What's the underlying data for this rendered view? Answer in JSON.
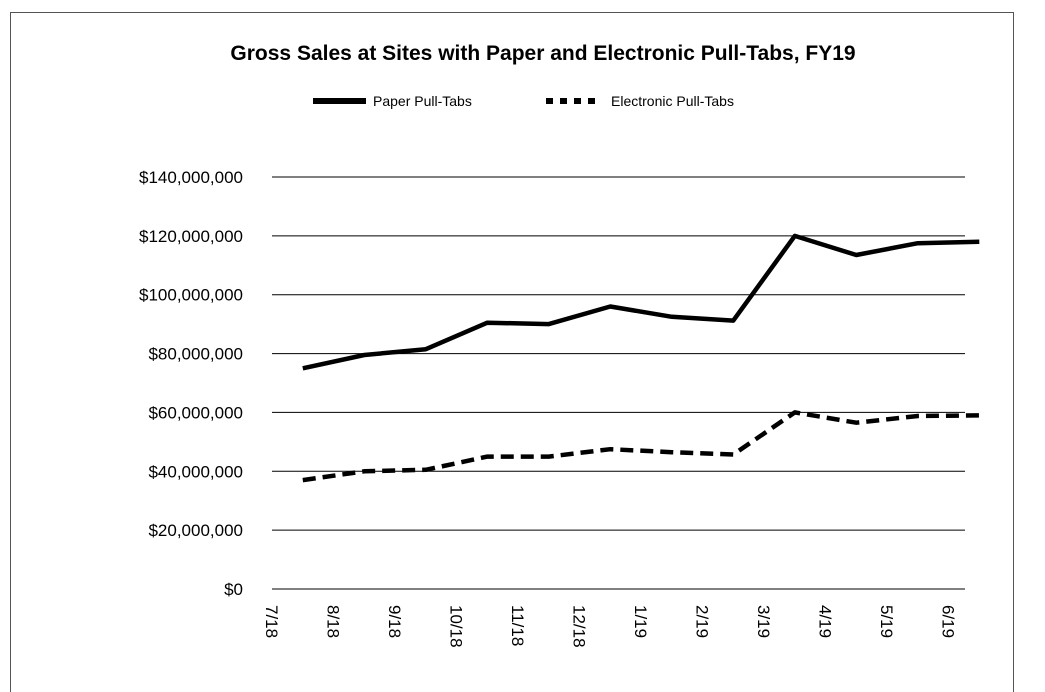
{
  "chart_data": {
    "type": "line",
    "title": "Gross Sales at Sites with Paper and Electronic Pull-Tabs, FY19",
    "x_tick_labels": [
      "7/18",
      "8/18",
      "9/18",
      "10/18",
      "11/18",
      "12/18",
      "1/19",
      "2/19",
      "3/19",
      "4/19",
      "5/19",
      "6/19"
    ],
    "y_tick_labels": [
      "$0",
      "$20,000,000",
      "$40,000,000",
      "$60,000,000",
      "$80,000,000",
      "$100,000,000",
      "$120,000,000",
      "$140,000,000"
    ],
    "ylim": [
      0,
      140000000
    ],
    "grid": "horizontal",
    "legend_position": "top",
    "series": [
      {
        "name": "Paper Pull-Tabs",
        "style": "solid",
        "color": "#000000",
        "values": [
          75000000,
          79500000,
          81500000,
          90500000,
          90000000,
          96000000,
          92500000,
          91200000,
          120000000,
          113500000,
          117500000,
          118000000
        ]
      },
      {
        "name": "Electronic Pull-Tabs",
        "style": "dashed",
        "color": "#000000",
        "values": [
          37000000,
          40000000,
          40500000,
          45000000,
          45000000,
          47500000,
          46500000,
          45700000,
          60000000,
          56500000,
          58800000,
          59000000
        ]
      }
    ]
  }
}
